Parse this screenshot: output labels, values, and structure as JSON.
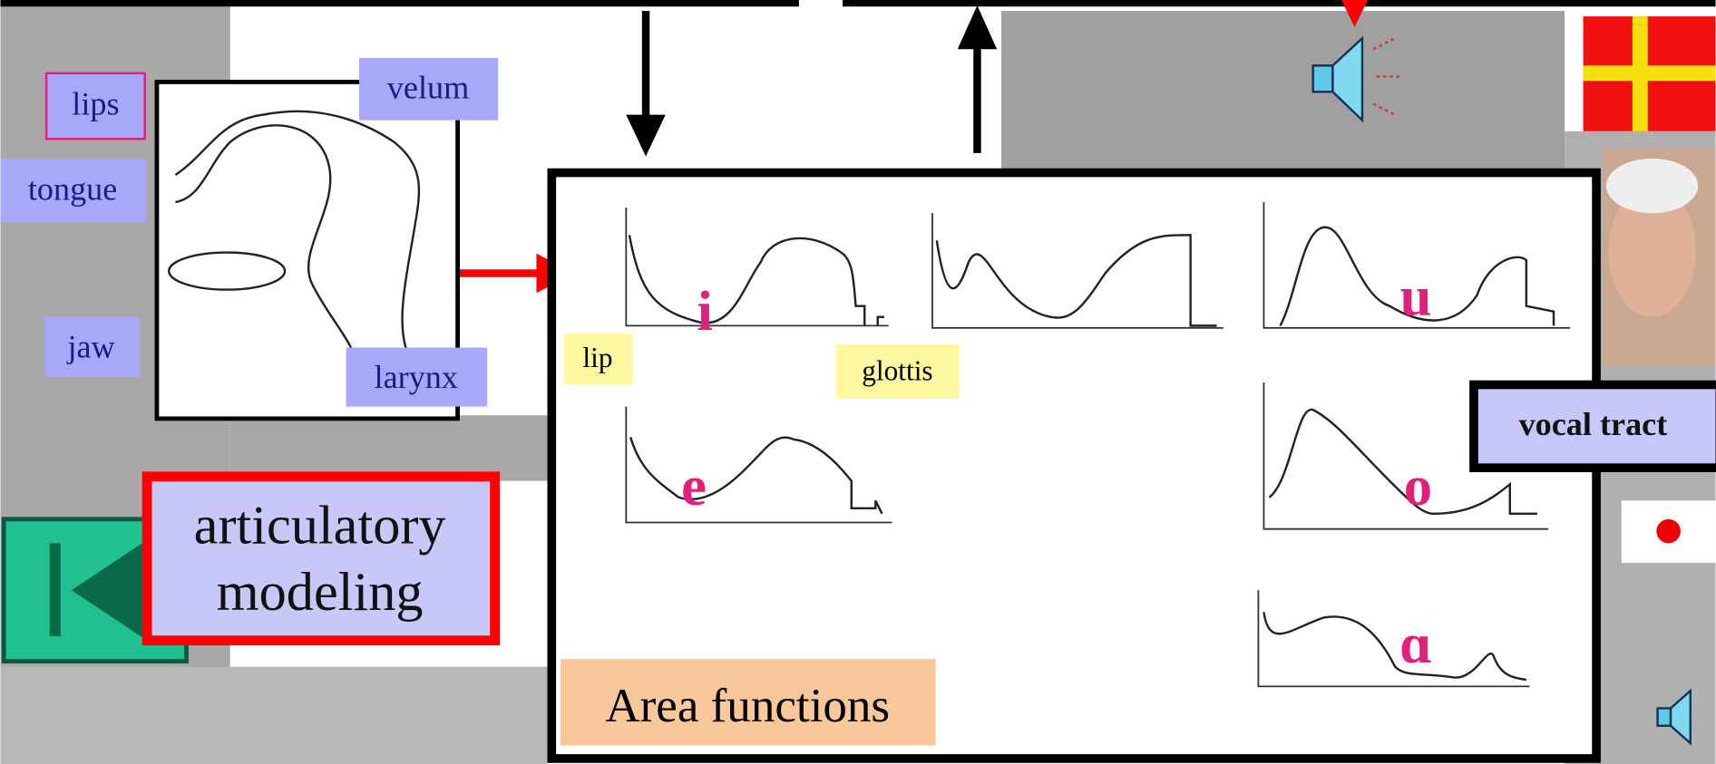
{
  "labels": {
    "lips": "lips",
    "velum": "velum",
    "tongue": "tongue",
    "jaw": "jaw",
    "larynx": "larynx"
  },
  "title": [
    "articulatory",
    "modeling"
  ],
  "area_functions": {
    "title": "Area functions",
    "lip": "lip",
    "glottis": "glottis",
    "vowels": [
      "i",
      "e",
      "u",
      "o",
      "ɑ"
    ]
  },
  "vocal_tract": "vocal tract"
}
